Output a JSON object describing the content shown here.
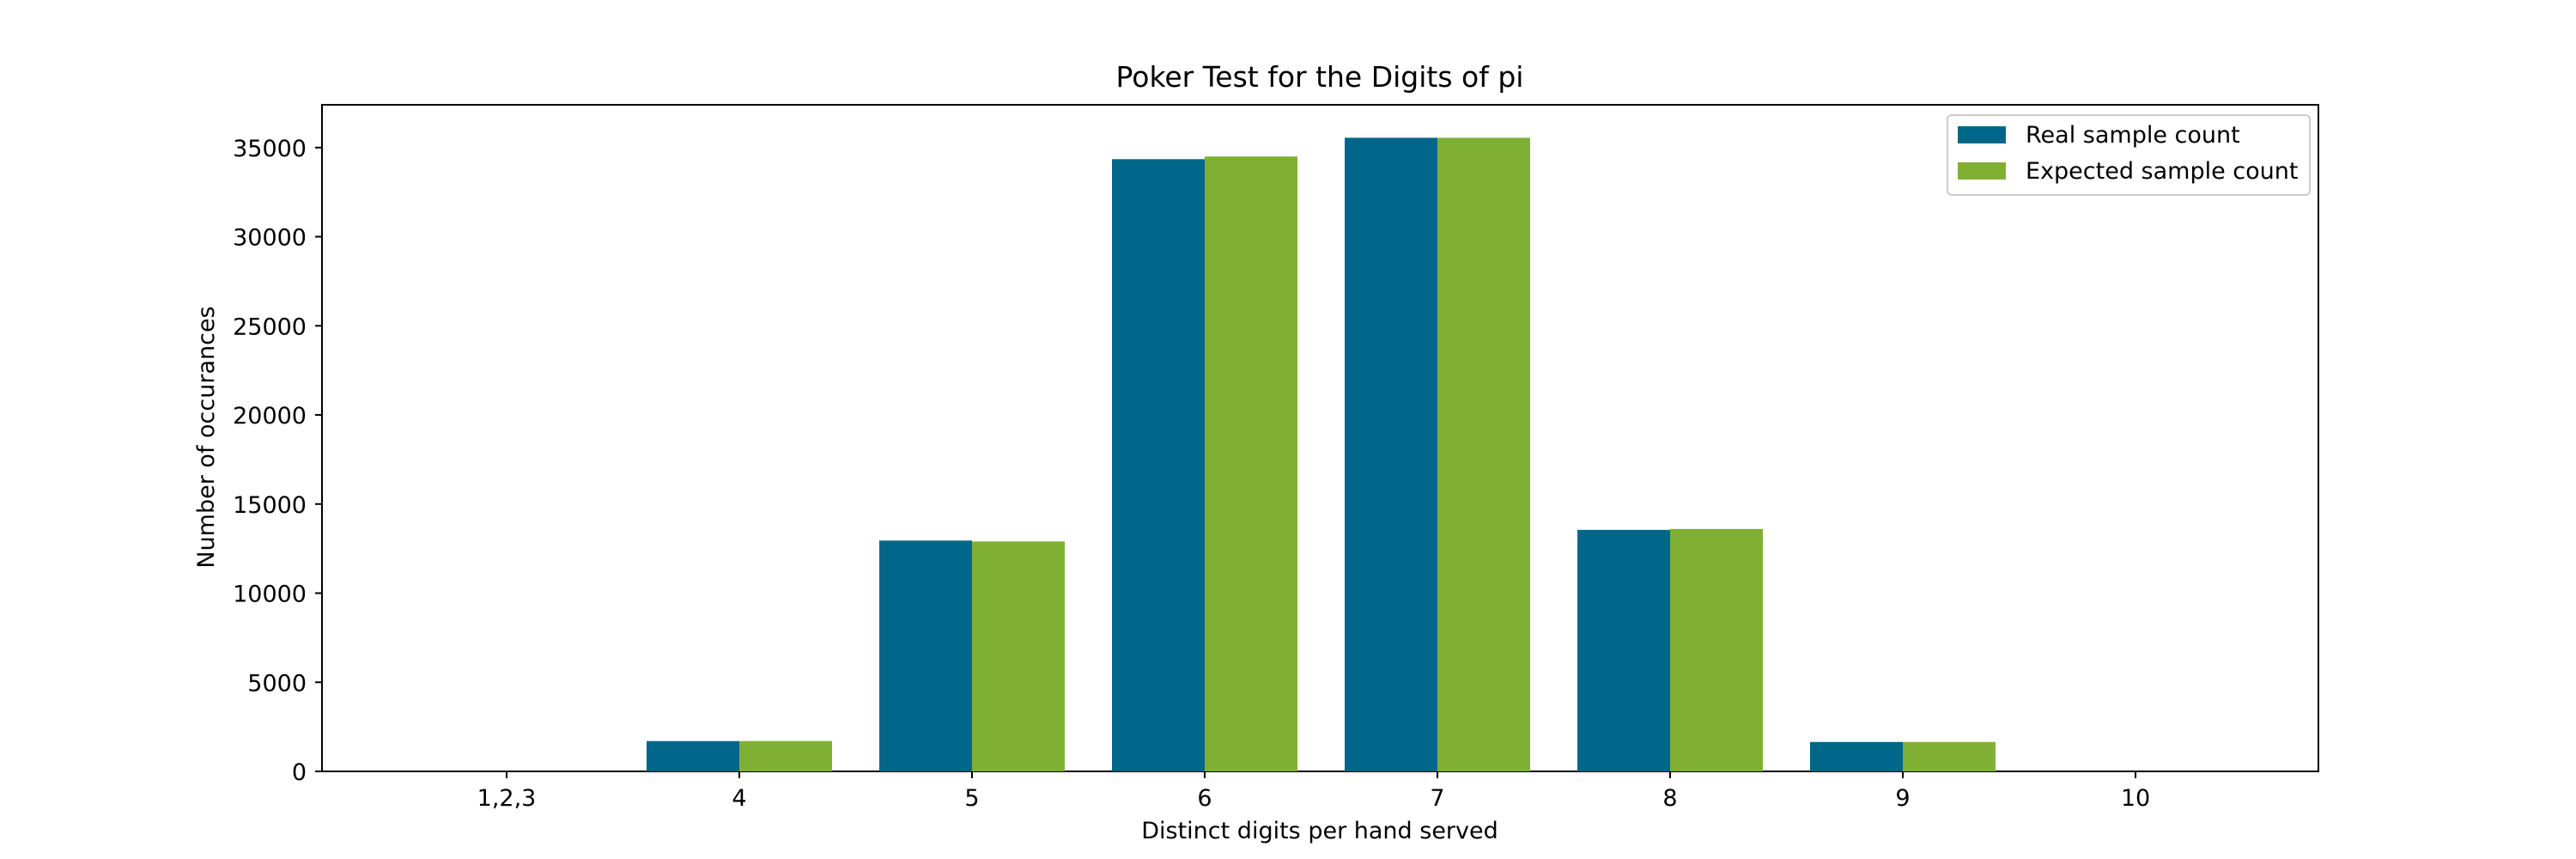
{
  "chart_data": {
    "type": "bar",
    "title": "Poker Test for the Digits of pi",
    "xlabel": "Distinct digits per hand served",
    "ylabel": "Number of occurances",
    "categories": [
      "1,2,3",
      "4",
      "5",
      "6",
      "7",
      "8",
      "9",
      "10"
    ],
    "ylim": [
      0,
      37400
    ],
    "yticks": [
      0,
      5000,
      10000,
      15000,
      20000,
      25000,
      30000,
      35000
    ],
    "ytick_labels": [
      "0",
      "5000",
      "10000",
      "15000",
      "20000",
      "25000",
      "30000",
      "35000"
    ],
    "series": [
      {
        "name": "Real sample count",
        "color": "#00678a",
        "values": [
          0,
          1700,
          12950,
          34350,
          35550,
          13550,
          1650,
          0
        ]
      },
      {
        "name": "Expected sample count",
        "color": "#80b033",
        "values": [
          0,
          1700,
          12900,
          34500,
          35550,
          13600,
          1650,
          0
        ]
      }
    ],
    "legend_position": "top-right",
    "grid": false
  }
}
